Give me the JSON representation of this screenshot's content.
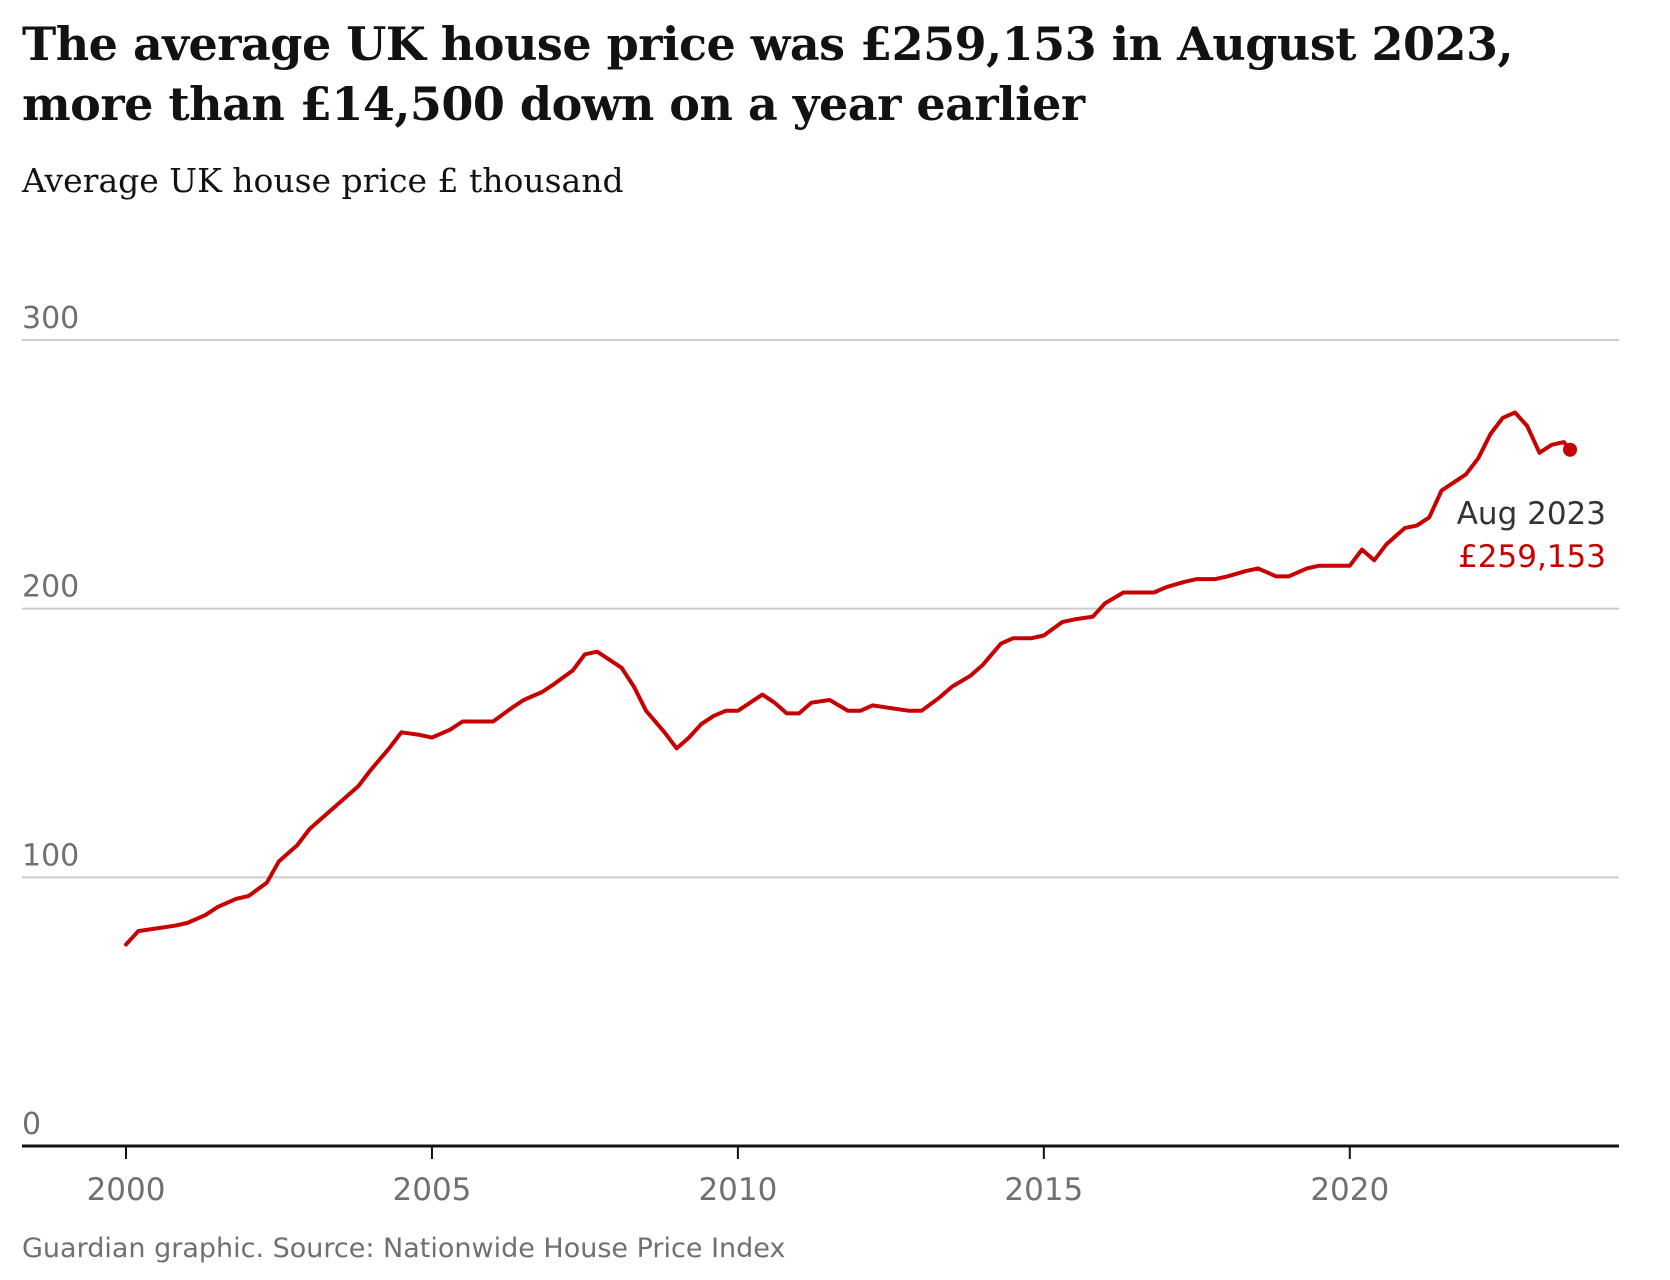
{
  "title": "The average UK house price was £259,153 in August 2023, more than £14,500 down on a year earlier",
  "subtitle": "Average UK house price £ thousand",
  "source": "Guardian graphic. Source: Nationwide House Price Index",
  "annotation": {
    "label": "Aug 2023",
    "value": "£259,153"
  },
  "colors": {
    "line": "#c70000",
    "grid": "#cccccc",
    "axis": "#121212",
    "tick_text": "#707070"
  },
  "chart_data": {
    "type": "line",
    "title": "The average UK house price was £259,153 in August 2023, more than £14,500 down on a year earlier",
    "ylabel": "Average UK house price £ thousand",
    "xlabel": "",
    "xlim": [
      1998.3,
      2024.4
    ],
    "ylim": [
      0,
      300
    ],
    "y_ticks": [
      0,
      100,
      200,
      300
    ],
    "y_tick_labels": [
      "0",
      "100",
      "200",
      "300"
    ],
    "x_ticks": [
      2000,
      2005,
      2010,
      2015,
      2020
    ],
    "x_tick_labels": [
      "2000",
      "2005",
      "2010",
      "2015",
      "2020"
    ],
    "grid": "horizontal",
    "series": [
      {
        "x": [
          2000.0,
          2000.2,
          2000.5,
          2000.8,
          2001.0,
          2001.3,
          2001.5,
          2001.8,
          2002.0,
          2002.3,
          2002.5,
          2002.8,
          2003.0,
          2003.3,
          2003.5,
          2003.8,
          2004.0,
          2004.3,
          2004.5,
          2004.8,
          2005.0,
          2005.3,
          2005.5,
          2005.8,
          2006.0,
          2006.3,
          2006.5,
          2006.8,
          2007.0,
          2007.3,
          2007.5,
          2007.7,
          2007.9,
          2008.1,
          2008.3,
          2008.5,
          2008.8,
          2009.0,
          2009.2,
          2009.4,
          2009.6,
          2009.8,
          2010.0,
          2010.2,
          2010.4,
          2010.6,
          2010.8,
          2011.0,
          2011.2,
          2011.5,
          2011.8,
          2012.0,
          2012.2,
          2012.5,
          2012.8,
          2013.0,
          2013.3,
          2013.5,
          2013.8,
          2014.0,
          2014.3,
          2014.5,
          2014.8,
          2015.0,
          2015.3,
          2015.5,
          2015.8,
          2016.0,
          2016.3,
          2016.5,
          2016.8,
          2017.0,
          2017.3,
          2017.5,
          2017.8,
          2018.0,
          2018.3,
          2018.5,
          2018.8,
          2019.0,
          2019.3,
          2019.5,
          2019.8,
          2020.0,
          2020.2,
          2020.4,
          2020.6,
          2020.9,
          2021.1,
          2021.3,
          2021.5,
          2021.7,
          2021.9,
          2022.1,
          2022.3,
          2022.5,
          2022.7,
          2022.9,
          2023.1,
          2023.3,
          2023.5,
          2023.6
        ],
        "y": [
          75,
          80,
          81,
          82,
          83,
          86,
          89,
          92,
          93,
          98,
          106,
          112,
          118,
          124,
          128,
          134,
          140,
          148,
          154,
          153,
          152,
          155,
          158,
          158,
          158,
          163,
          166,
          169,
          172,
          177,
          183,
          184,
          181,
          178,
          171,
          162,
          154,
          148,
          152,
          157,
          160,
          162,
          162,
          165,
          168,
          165,
          161,
          161,
          165,
          166,
          162,
          162,
          164,
          163,
          162,
          162,
          167,
          171,
          175,
          179,
          187,
          189,
          189,
          190,
          195,
          196,
          197,
          202,
          206,
          206,
          206,
          208,
          210,
          211,
          211,
          212,
          214,
          215,
          212,
          212,
          215,
          216,
          216,
          216,
          222,
          218,
          224,
          230,
          231,
          234,
          244,
          247,
          250,
          256,
          265,
          271,
          273,
          268,
          258,
          261,
          262,
          259.153
        ]
      }
    ],
    "last_point": {
      "x": 2023.6,
      "y": 259.153
    }
  }
}
